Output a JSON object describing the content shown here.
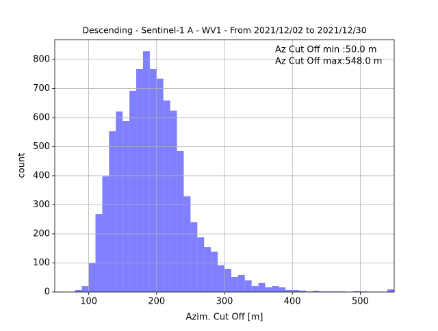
{
  "chart_data": {
    "type": "histogram",
    "title": "Descending - Sentinel-1 A - WV1 - From 2021/12/02 to 2021/12/30",
    "x_label": "Azim. Cut Off [m]",
    "y_label": "count",
    "annotations": [
      "Az Cut Off min :50.0 m",
      "Az Cut Off max:548.0 m"
    ],
    "bins": [
      50,
      60,
      70,
      80,
      90,
      100,
      110,
      120,
      130,
      140,
      150,
      160,
      170,
      180,
      190,
      200,
      210,
      220,
      230,
      240,
      250,
      260,
      270,
      280,
      290,
      300,
      310,
      320,
      330,
      340,
      350,
      360,
      370,
      380,
      390,
      400,
      410,
      420,
      430,
      440,
      450,
      460,
      470,
      480,
      490,
      500,
      510,
      520,
      530,
      540,
      550
    ],
    "values": [
      1,
      0,
      0,
      7,
      21,
      99,
      268,
      398,
      553,
      621,
      588,
      692,
      767,
      828,
      767,
      734,
      659,
      624,
      485,
      329,
      240,
      188,
      155,
      139,
      92,
      80,
      52,
      59,
      40,
      21,
      31,
      16,
      21,
      16,
      7,
      7,
      5,
      2,
      4,
      2,
      2,
      2,
      2,
      1,
      3,
      2,
      1,
      1,
      1,
      9
    ],
    "color": "#8080ff",
    "xlim": [
      50,
      550
    ],
    "ylim": [
      0,
      868
    ],
    "xticks": [
      100,
      200,
      300,
      400,
      500
    ],
    "yticks": [
      0,
      100,
      200,
      300,
      400,
      500,
      600,
      700,
      800
    ],
    "grid": true
  }
}
